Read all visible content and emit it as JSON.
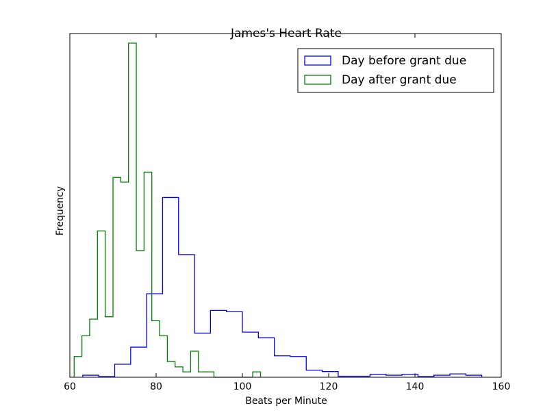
{
  "chart_data": {
    "type": "histogram",
    "title": "James's Heart Rate",
    "xlabel": "Beats per Minute",
    "ylabel": "Frequency",
    "xlim": [
      60,
      160
    ],
    "ylim": [
      0,
      100
    ],
    "xticks": [
      "60",
      "80",
      "100",
      "120",
      "140",
      "160"
    ],
    "yticks_shown": false,
    "grid": false,
    "legend_position": "top-right",
    "series": [
      {
        "name": "Day before grant due",
        "color": "#0000ff",
        "bin_edges": [
          63.0,
          66.7,
          70.4,
          74.1,
          77.8,
          81.5,
          85.2,
          88.9,
          92.6,
          96.3,
          100.0,
          103.7,
          107.4,
          111.1,
          114.8,
          118.5,
          122.2,
          125.9,
          129.6,
          133.3,
          137.0,
          140.7,
          144.4,
          148.1,
          151.8,
          155.5
        ],
        "counts": [
          0.6,
          0.2,
          3.9,
          9.0,
          25.0,
          53.8,
          36.7,
          13.2,
          20.0,
          19.6,
          13.5,
          11.8,
          6.4,
          6.2,
          2.1,
          1.7,
          0.3,
          0.3,
          0.9,
          0.6,
          0.9,
          0.2,
          0.6,
          1.0,
          0.6
        ]
      },
      {
        "name": "Day after grant due",
        "color": "#008000",
        "bin_edges": [
          61.0,
          62.8,
          64.6,
          66.4,
          68.2,
          70.0,
          71.8,
          73.6,
          75.4,
          77.2,
          79.0,
          80.8,
          82.6,
          84.4,
          86.2,
          88.0,
          89.8,
          91.6,
          93.4,
          95.2,
          97.0,
          98.8,
          100.6,
          102.4,
          104.2
        ],
        "counts": [
          6.2,
          12.4,
          17.4,
          43.8,
          18.1,
          59.8,
          58.4,
          100.0,
          37.9,
          61.4,
          16.9,
          12.4,
          4.7,
          3.1,
          1.6,
          7.8,
          1.6,
          1.6,
          0.0,
          0.0,
          0.0,
          0.0,
          0.0,
          1.6
        ]
      }
    ]
  }
}
